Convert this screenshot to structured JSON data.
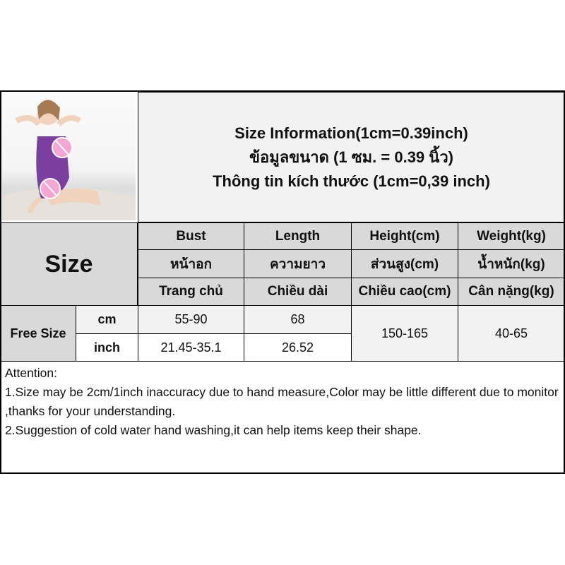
{
  "header": {
    "lines": [
      "Size Information(1cm=0.39inch)",
      "ข้อมูลขนาด (1 ซม. = 0.39 นิ้ว)",
      "Thông tin kích thước (1cm=0,39 inch)"
    ]
  },
  "product_image": {
    "alt": "model wearing purple bodysuit",
    "accent": "#7b3fa0",
    "censor_color": "#f4a7d2"
  },
  "table": {
    "size_label": "Size",
    "columns": [
      {
        "en": "Bust",
        "th": "หน้าอก",
        "vi": "Trang chủ"
      },
      {
        "en": "Length",
        "th": "ความยาว",
        "vi": "Chiều dài"
      },
      {
        "en": "Height(cm)",
        "th": "ส่วนสูง(cm)",
        "vi": "Chiều cao(cm)"
      },
      {
        "en": "Weight(kg)",
        "th": "น้ำหนัก(kg)",
        "vi": "Cân nặng(kg)"
      }
    ],
    "row_label": "Free Size",
    "units": [
      "cm",
      "inch"
    ],
    "cm": {
      "bust": "55-90",
      "length": "68"
    },
    "inch": {
      "bust": "21.45-35.1",
      "length": "26.52"
    },
    "height": "150-165",
    "weight": "40-65"
  },
  "attention": {
    "title": "Attention:",
    "line1": "1.Size may be 2cm/1inch inaccuracy due to hand measure,Color may be little different due to monitor ,thanks for your understanding.",
    "line2": "2.Suggestion of cold water hand washing,it can help items keep their shape."
  }
}
